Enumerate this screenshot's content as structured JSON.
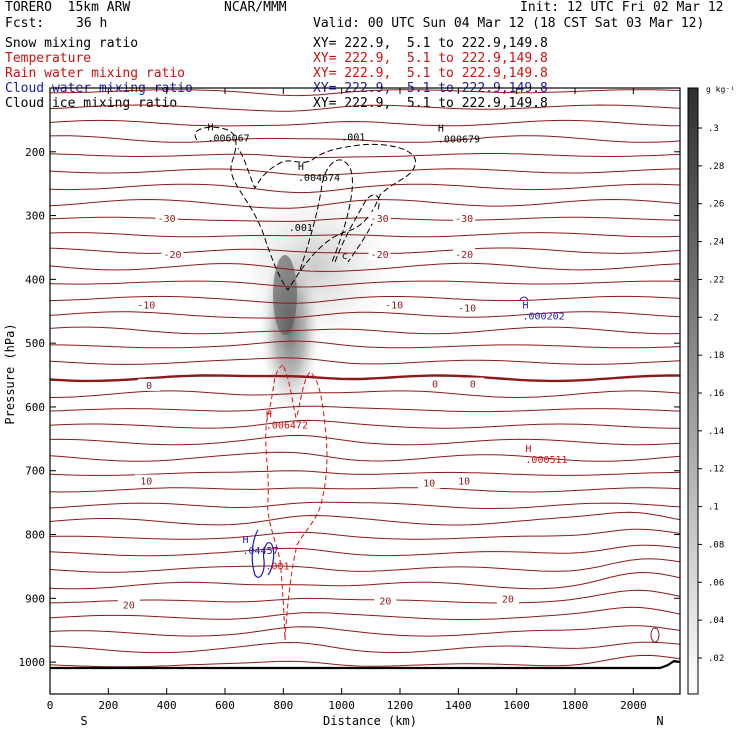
{
  "header": {
    "model": "TORERO  15km ARW",
    "center": "NCAR/MMM",
    "init": "Init: 12 UTC Fri 02 Mar 12",
    "fcst_label": "Fcst:",
    "fcst_value": "36 h",
    "valid": "Valid: 00 UTC Sun 04 Mar 12 (18 CST Sat 03 Mar 12)"
  },
  "fields": [
    {
      "name": "Snow mixing ratio",
      "range": "XY= 222.9,  5.1 to 222.9,149.8",
      "color": "#000000"
    },
    {
      "name": "Temperature",
      "range": "XY= 222.9,  5.1 to 222.9,149.8",
      "color": "#cc1111"
    },
    {
      "name": "Rain water mixing ratio",
      "range": "XY= 222.9,  5.1 to 222.9,149.8",
      "color": "#cc1111"
    },
    {
      "name": "Cloud water mixing ratio",
      "range": "XY= 222.9,  5.1 to 222.9,149.8",
      "color": "#1a1ab0"
    },
    {
      "name": "Cloud ice mixing ratio",
      "range": "XY= 222.9,  5.1 to 222.9,149.8",
      "color": "#000000"
    }
  ],
  "chart_data": {
    "type": "cross-section",
    "xlabel": "Distance (km)",
    "ylabel": "Pressure (hPa)",
    "xlim": [
      0,
      2160
    ],
    "ylim": [
      1050,
      100
    ],
    "x_ticks": [
      0,
      200,
      400,
      600,
      800,
      1000,
      1200,
      1400,
      1600,
      1800,
      2000
    ],
    "y_ticks": [
      200,
      300,
      400,
      500,
      600,
      700,
      800,
      900,
      1000
    ],
    "side_labels": {
      "left": "S",
      "right": "N"
    },
    "colorbar": {
      "unit": "g kg⁻¹",
      "ticks": [
        ".3",
        ".28",
        ".26",
        ".24",
        ".22",
        ".2",
        ".18",
        ".16",
        ".14",
        ".12",
        ".1",
        ".08",
        ".06",
        ".04",
        ".02"
      ]
    },
    "isotherm_labels": [
      {
        "x": 400,
        "p": 305,
        "label": "-30"
      },
      {
        "x": 1130,
        "p": 305,
        "label": "-30"
      },
      {
        "x": 1420,
        "p": 305,
        "label": "-30"
      },
      {
        "x": 420,
        "p": 362,
        "label": "-20"
      },
      {
        "x": 1130,
        "p": 362,
        "label": "-20"
      },
      {
        "x": 1420,
        "p": 362,
        "label": "-20"
      },
      {
        "x": 330,
        "p": 441,
        "label": "-10"
      },
      {
        "x": 1180,
        "p": 441,
        "label": "-10"
      },
      {
        "x": 1430,
        "p": 446,
        "label": "-10"
      },
      {
        "x": 340,
        "p": 567,
        "label": "0"
      },
      {
        "x": 1320,
        "p": 565,
        "label": "0"
      },
      {
        "x": 1450,
        "p": 565,
        "label": "0"
      },
      {
        "x": 330,
        "p": 717,
        "label": "10"
      },
      {
        "x": 1300,
        "p": 720,
        "label": "10"
      },
      {
        "x": 1420,
        "p": 717,
        "label": "10"
      },
      {
        "x": 270,
        "p": 911,
        "label": "20"
      },
      {
        "x": 1150,
        "p": 905,
        "label": "20"
      },
      {
        "x": 1570,
        "p": 902,
        "label": "20"
      }
    ],
    "extrema": [
      {
        "x": 540,
        "p": 182,
        "label": "H",
        "value": ".006067",
        "color": "#000000"
      },
      {
        "x": 850,
        "p": 244,
        "label": "H",
        "value": ".004674",
        "color": "#000000"
      },
      {
        "x": 1330,
        "p": 184,
        "label": "H",
        "value": ".000679",
        "color": "#000000"
      },
      {
        "x": 1620,
        "p": 461,
        "label": "H",
        "value": ".000202",
        "color": "#1a1ab0"
      },
      {
        "x": 740,
        "p": 632,
        "label": "H",
        "value": ".006472",
        "color": "#cc1111"
      },
      {
        "x": 1630,
        "p": 686,
        "label": "H",
        "value": ".000511",
        "color": "#cc1111"
      },
      {
        "x": 660,
        "p": 829,
        "label": "H",
        "value": ".04457",
        "color": "#1a1ab0"
      }
    ],
    "contour_labels": [
      {
        "x": 1040,
        "p": 182,
        "label": ".001",
        "color": "#000000"
      },
      {
        "x": 860,
        "p": 324,
        "label": ".001",
        "color": "#000000"
      },
      {
        "x": 1010,
        "p": 368,
        "label": "c",
        "color": "#000000"
      },
      {
        "x": 780,
        "p": 855,
        "label": ".001",
        "color": "#cc1111"
      }
    ]
  }
}
